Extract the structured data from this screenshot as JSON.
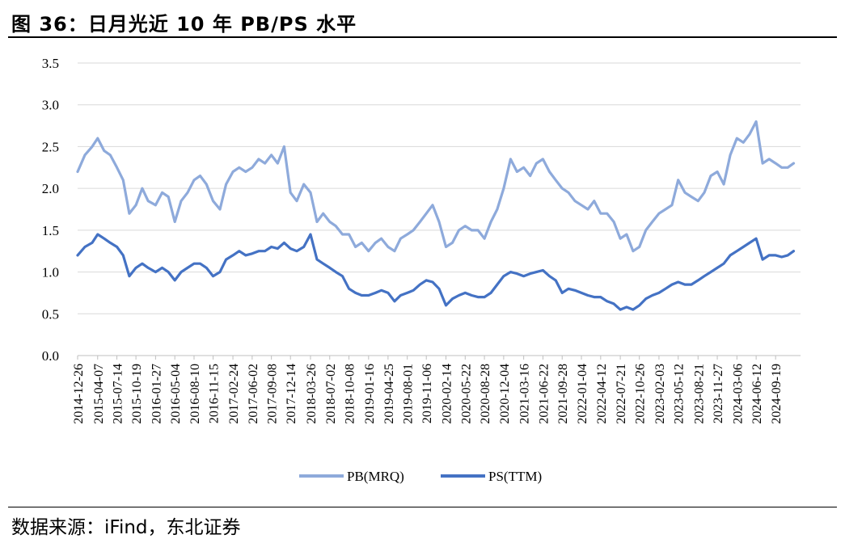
{
  "figure": {
    "title": "图 36：日月光近 10 年 PB/PS 水平",
    "source": "数据来源：iFind，东北证券"
  },
  "chart_data": {
    "type": "line",
    "ylim": [
      0,
      3.5
    ],
    "y_ticks": [
      "0.0",
      "0.5",
      "1.0",
      "1.5",
      "2.0",
      "2.5",
      "3.0",
      "3.5"
    ],
    "x_tick_labels": [
      "2014-12-26",
      "2015-04-07",
      "2015-07-14",
      "2015-10-19",
      "2016-01-27",
      "2016-05-04",
      "2016-08-10",
      "2016-11-15",
      "2017-02-24",
      "2017-06-02",
      "2017-09-08",
      "2017-12-14",
      "2018-03-26",
      "2018-07-02",
      "2018-10-08",
      "2019-01-16",
      "2019-04-25",
      "2019-08-01",
      "2019-11-06",
      "2020-02-14",
      "2020-05-22",
      "2020-08-28",
      "2020-12-04",
      "2021-03-16",
      "2021-06-22",
      "2021-09-28",
      "2022-01-04",
      "2022-04-12",
      "2022-07-21",
      "2022-10-26",
      "2023-02-03",
      "2023-05-12",
      "2023-08-21",
      "2023-11-27",
      "2024-03-06",
      "2024-06-12",
      "2024-09-19"
    ],
    "grid": true,
    "legend_position": "bottom",
    "series": [
      {
        "name": "PB(MRQ)",
        "color": "#8eaadb",
        "x": [
          "2014-12-26",
          "2015-02-01",
          "2015-03-10",
          "2015-04-07",
          "2015-05-10",
          "2015-06-10",
          "2015-07-14",
          "2015-08-15",
          "2015-09-15",
          "2015-10-19",
          "2015-11-20",
          "2015-12-20",
          "2016-01-27",
          "2016-03-01",
          "2016-04-01",
          "2016-05-04",
          "2016-06-05",
          "2016-07-08",
          "2016-08-10",
          "2016-09-10",
          "2016-10-12",
          "2016-11-15",
          "2016-12-20",
          "2017-01-20",
          "2017-02-24",
          "2017-03-28",
          "2017-04-30",
          "2017-06-02",
          "2017-07-05",
          "2017-08-06",
          "2017-09-08",
          "2017-10-10",
          "2017-11-12",
          "2017-12-14",
          "2018-01-15",
          "2018-02-20",
          "2018-03-26",
          "2018-04-28",
          "2018-05-30",
          "2018-07-02",
          "2018-08-02",
          "2018-09-05",
          "2018-10-08",
          "2018-11-10",
          "2018-12-12",
          "2019-01-16",
          "2019-02-20",
          "2019-03-22",
          "2019-04-25",
          "2019-05-28",
          "2019-06-28",
          "2019-08-01",
          "2019-09-01",
          "2019-10-05",
          "2019-11-06",
          "2019-12-08",
          "2020-01-10",
          "2020-02-14",
          "2020-03-18",
          "2020-04-20",
          "2020-05-22",
          "2020-06-24",
          "2020-07-26",
          "2020-08-28",
          "2020-09-30",
          "2020-11-01",
          "2020-12-04",
          "2021-01-08",
          "2021-02-10",
          "2021-03-16",
          "2021-04-18",
          "2021-05-20",
          "2021-06-22",
          "2021-07-25",
          "2021-08-26",
          "2021-09-28",
          "2021-10-30",
          "2021-12-02",
          "2022-01-04",
          "2022-02-06",
          "2022-03-10",
          "2022-04-12",
          "2022-05-15",
          "2022-06-18",
          "2022-07-21",
          "2022-08-22",
          "2022-09-24",
          "2022-10-26",
          "2022-11-28",
          "2022-12-31",
          "2023-02-03",
          "2023-03-08",
          "2023-04-10",
          "2023-05-12",
          "2023-06-15",
          "2023-07-18",
          "2023-08-21",
          "2023-09-22",
          "2023-10-25",
          "2023-11-27",
          "2023-12-30",
          "2024-02-01",
          "2024-03-06",
          "2024-04-08",
          "2024-05-10",
          "2024-06-12",
          "2024-07-15",
          "2024-08-17",
          "2024-09-19",
          "2024-10-20",
          "2024-11-20",
          "2024-12-20"
        ],
        "values": [
          2.2,
          2.4,
          2.5,
          2.6,
          2.45,
          2.4,
          2.25,
          2.1,
          1.7,
          1.8,
          2.0,
          1.85,
          1.8,
          1.95,
          1.9,
          1.6,
          1.85,
          1.95,
          2.1,
          2.15,
          2.05,
          1.85,
          1.75,
          2.05,
          2.2,
          2.25,
          2.2,
          2.25,
          2.35,
          2.3,
          2.4,
          2.3,
          2.5,
          1.95,
          1.85,
          2.05,
          1.95,
          1.6,
          1.7,
          1.6,
          1.55,
          1.45,
          1.45,
          1.3,
          1.35,
          1.25,
          1.35,
          1.4,
          1.3,
          1.25,
          1.4,
          1.45,
          1.5,
          1.6,
          1.7,
          1.8,
          1.6,
          1.3,
          1.35,
          1.5,
          1.55,
          1.5,
          1.5,
          1.4,
          1.6,
          1.75,
          2.0,
          2.35,
          2.2,
          2.25,
          2.15,
          2.3,
          2.35,
          2.2,
          2.1,
          2.0,
          1.95,
          1.85,
          1.8,
          1.75,
          1.85,
          1.7,
          1.7,
          1.6,
          1.4,
          1.45,
          1.25,
          1.3,
          1.5,
          1.6,
          1.7,
          1.75,
          1.8,
          2.1,
          1.95,
          1.9,
          1.85,
          1.95,
          2.15,
          2.2,
          2.05,
          2.4,
          2.6,
          2.55,
          2.65,
          2.8,
          2.3,
          2.35,
          2.3,
          2.25,
          2.25,
          2.3
        ]
      },
      {
        "name": "PS(TTM)",
        "color": "#4472c4",
        "x": [
          "2014-12-26",
          "2015-02-01",
          "2015-03-10",
          "2015-04-07",
          "2015-05-10",
          "2015-06-10",
          "2015-07-14",
          "2015-08-15",
          "2015-09-15",
          "2015-10-19",
          "2015-11-20",
          "2015-12-20",
          "2016-01-27",
          "2016-03-01",
          "2016-04-01",
          "2016-05-04",
          "2016-06-05",
          "2016-07-08",
          "2016-08-10",
          "2016-09-10",
          "2016-10-12",
          "2016-11-15",
          "2016-12-20",
          "2017-01-20",
          "2017-02-24",
          "2017-03-28",
          "2017-04-30",
          "2017-06-02",
          "2017-07-05",
          "2017-08-06",
          "2017-09-08",
          "2017-10-10",
          "2017-11-12",
          "2017-12-14",
          "2018-01-15",
          "2018-02-20",
          "2018-03-26",
          "2018-04-28",
          "2018-05-30",
          "2018-07-02",
          "2018-08-02",
          "2018-09-05",
          "2018-10-08",
          "2018-11-10",
          "2018-12-12",
          "2019-01-16",
          "2019-02-20",
          "2019-03-22",
          "2019-04-25",
          "2019-05-28",
          "2019-06-28",
          "2019-08-01",
          "2019-09-01",
          "2019-10-05",
          "2019-11-06",
          "2019-12-08",
          "2020-01-10",
          "2020-02-14",
          "2020-03-18",
          "2020-04-20",
          "2020-05-22",
          "2020-06-24",
          "2020-07-26",
          "2020-08-28",
          "2020-09-30",
          "2020-11-01",
          "2020-12-04",
          "2021-01-08",
          "2021-02-10",
          "2021-03-16",
          "2021-04-18",
          "2021-05-20",
          "2021-06-22",
          "2021-07-25",
          "2021-08-26",
          "2021-09-28",
          "2021-10-30",
          "2021-12-02",
          "2022-01-04",
          "2022-02-06",
          "2022-03-10",
          "2022-04-12",
          "2022-05-15",
          "2022-06-18",
          "2022-07-21",
          "2022-08-22",
          "2022-09-24",
          "2022-10-26",
          "2022-11-28",
          "2022-12-31",
          "2023-02-03",
          "2023-03-08",
          "2023-04-10",
          "2023-05-12",
          "2023-06-15",
          "2023-07-18",
          "2023-08-21",
          "2023-09-22",
          "2023-10-25",
          "2023-11-27",
          "2023-12-30",
          "2024-02-01",
          "2024-03-06",
          "2024-04-08",
          "2024-05-10",
          "2024-06-12",
          "2024-07-15",
          "2024-08-17",
          "2024-09-19",
          "2024-10-20",
          "2024-11-20",
          "2024-12-20"
        ],
        "values": [
          1.2,
          1.3,
          1.35,
          1.45,
          1.4,
          1.35,
          1.3,
          1.2,
          0.95,
          1.05,
          1.1,
          1.05,
          1.0,
          1.05,
          1.0,
          0.9,
          1.0,
          1.05,
          1.1,
          1.1,
          1.05,
          0.95,
          1.0,
          1.15,
          1.2,
          1.25,
          1.2,
          1.22,
          1.25,
          1.25,
          1.3,
          1.28,
          1.35,
          1.28,
          1.25,
          1.3,
          1.45,
          1.15,
          1.1,
          1.05,
          1.0,
          0.95,
          0.8,
          0.75,
          0.72,
          0.72,
          0.75,
          0.78,
          0.75,
          0.65,
          0.72,
          0.75,
          0.78,
          0.85,
          0.9,
          0.88,
          0.8,
          0.6,
          0.68,
          0.72,
          0.75,
          0.72,
          0.7,
          0.7,
          0.75,
          0.85,
          0.95,
          1.0,
          0.98,
          0.95,
          0.98,
          1.0,
          1.02,
          0.95,
          0.9,
          0.75,
          0.8,
          0.78,
          0.75,
          0.72,
          0.7,
          0.7,
          0.65,
          0.62,
          0.55,
          0.58,
          0.55,
          0.6,
          0.68,
          0.72,
          0.75,
          0.8,
          0.85,
          0.88,
          0.85,
          0.85,
          0.9,
          0.95,
          1.0,
          1.05,
          1.1,
          1.2,
          1.25,
          1.3,
          1.35,
          1.4,
          1.15,
          1.2,
          1.2,
          1.18,
          1.2,
          1.25
        ]
      }
    ]
  }
}
